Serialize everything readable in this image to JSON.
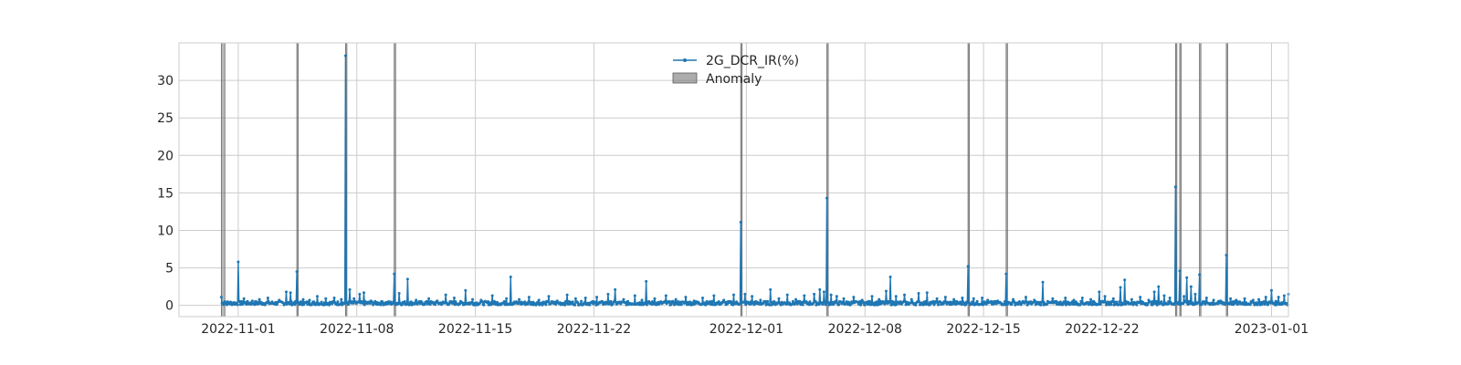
{
  "chart_data": {
    "type": "line",
    "title": "",
    "xlabel": "",
    "ylabel": "",
    "x_range": [
      "2022-10-28T12:00",
      "2023-01-02T00:00"
    ],
    "ylim": [
      -1.5,
      35
    ],
    "grid": true,
    "legend_position": "upper-center",
    "x_ticks": [
      "2022-11-01",
      "2022-11-08",
      "2022-11-15",
      "2022-11-22",
      "2022-12-01",
      "2022-12-08",
      "2022-12-15",
      "2022-12-22",
      "2023-01-01"
    ],
    "y_ticks": [
      0,
      5,
      10,
      15,
      20,
      25,
      30
    ],
    "series": [
      {
        "name": "2G_DCR_IR(%)",
        "color": "#1f77b4",
        "marker": "dot",
        "range": [
          "2022-10-31T00:00",
          "2022-12-31T00:00"
        ],
        "baseline": 0.3,
        "points": [
          [
            "2022-10-31T00:00",
            1.1
          ],
          [
            "2022-10-31T05:00",
            0.5
          ],
          [
            "2022-11-01T00:00",
            5.8
          ],
          [
            "2022-11-01T08:00",
            0.9
          ],
          [
            "2022-11-01T20:00",
            0.6
          ],
          [
            "2022-11-02T06:00",
            0.8
          ],
          [
            "2022-11-02T18:00",
            1.0
          ],
          [
            "2022-11-03T10:00",
            0.7
          ],
          [
            "2022-11-03T20:00",
            1.8
          ],
          [
            "2022-11-04T02:00",
            1.7
          ],
          [
            "2022-11-04T11:00",
            4.5
          ],
          [
            "2022-11-04T20:00",
            0.8
          ],
          [
            "2022-11-05T05:00",
            0.7
          ],
          [
            "2022-11-05T16:00",
            1.2
          ],
          [
            "2022-11-06T04:00",
            0.9
          ],
          [
            "2022-11-06T16:00",
            1.0
          ],
          [
            "2022-11-07T02:00",
            0.8
          ],
          [
            "2022-11-07T08:00",
            33.3
          ],
          [
            "2022-11-07T14:00",
            2.1
          ],
          [
            "2022-11-07T20:00",
            0.9
          ],
          [
            "2022-11-08T04:00",
            1.5
          ],
          [
            "2022-11-08T10:00",
            1.7
          ],
          [
            "2022-11-08T20:00",
            0.6
          ],
          [
            "2022-11-09T12:00",
            0.5
          ],
          [
            "2022-11-10T05:00",
            4.2
          ],
          [
            "2022-11-10T12:00",
            1.6
          ],
          [
            "2022-11-11T00:00",
            3.5
          ],
          [
            "2022-11-11T12:00",
            0.7
          ],
          [
            "2022-11-12T06:00",
            0.9
          ],
          [
            "2022-11-12T18:00",
            0.6
          ],
          [
            "2022-11-13T06:00",
            1.4
          ],
          [
            "2022-11-13T18:00",
            1.0
          ],
          [
            "2022-11-14T10:00",
            2.0
          ],
          [
            "2022-11-14T20:00",
            0.8
          ],
          [
            "2022-11-15T08:00",
            0.7
          ],
          [
            "2022-11-16T00:00",
            1.3
          ],
          [
            "2022-11-16T20:00",
            0.9
          ],
          [
            "2022-11-17T02:00",
            3.8
          ],
          [
            "2022-11-17T14:00",
            0.8
          ],
          [
            "2022-11-18T04:00",
            1.1
          ],
          [
            "2022-11-18T18:00",
            0.7
          ],
          [
            "2022-11-19T08:00",
            1.2
          ],
          [
            "2022-11-19T20:00",
            0.6
          ],
          [
            "2022-11-20T10:00",
            1.4
          ],
          [
            "2022-11-20T22:00",
            0.9
          ],
          [
            "2022-11-21T12:00",
            1.0
          ],
          [
            "2022-11-22T04:00",
            1.1
          ],
          [
            "2022-11-22T20:00",
            1.5
          ],
          [
            "2022-11-23T06:00",
            2.1
          ],
          [
            "2022-11-23T18:00",
            0.8
          ],
          [
            "2022-11-24T10:00",
            1.3
          ],
          [
            "2022-11-24T20:00",
            0.7
          ],
          [
            "2022-11-25T02:00",
            3.2
          ],
          [
            "2022-11-25T14:00",
            0.9
          ],
          [
            "2022-11-26T06:00",
            1.3
          ],
          [
            "2022-11-26T20:00",
            0.8
          ],
          [
            "2022-11-27T10:00",
            1.1
          ],
          [
            "2022-11-27T22:00",
            0.6
          ],
          [
            "2022-11-28T10:00",
            1.0
          ],
          [
            "2022-11-29T02:00",
            1.3
          ],
          [
            "2022-11-29T16:00",
            0.7
          ],
          [
            "2022-11-30T06:00",
            1.4
          ],
          [
            "2022-11-30T16:00",
            11.1
          ],
          [
            "2022-11-30T22:00",
            1.5
          ],
          [
            "2022-12-01T08:00",
            1.2
          ],
          [
            "2022-12-01T20:00",
            0.7
          ],
          [
            "2022-12-02T10:00",
            2.1
          ],
          [
            "2022-12-02T22:00",
            0.9
          ],
          [
            "2022-12-03T10:00",
            1.4
          ],
          [
            "2022-12-03T22:00",
            0.8
          ],
          [
            "2022-12-04T10:00",
            1.3
          ],
          [
            "2022-12-05T00:00",
            1.5
          ],
          [
            "2022-12-05T08:00",
            2.1
          ],
          [
            "2022-12-05T14:00",
            1.8
          ],
          [
            "2022-12-05T18:00",
            14.3
          ],
          [
            "2022-12-06T00:00",
            1.4
          ],
          [
            "2022-12-06T08:00",
            1.2
          ],
          [
            "2022-12-06T18:00",
            0.9
          ],
          [
            "2022-12-07T08:00",
            1.1
          ],
          [
            "2022-12-07T20:00",
            0.7
          ],
          [
            "2022-12-08T10:00",
            1.2
          ],
          [
            "2022-12-08T20:00",
            0.8
          ],
          [
            "2022-12-09T06:00",
            1.9
          ],
          [
            "2022-12-09T12:00",
            3.8
          ],
          [
            "2022-12-09T20:00",
            1.2
          ],
          [
            "2022-12-10T08:00",
            1.4
          ],
          [
            "2022-12-10T18:00",
            0.8
          ],
          [
            "2022-12-11T04:00",
            1.6
          ],
          [
            "2022-12-11T16:00",
            1.7
          ],
          [
            "2022-12-12T06:00",
            0.9
          ],
          [
            "2022-12-12T18:00",
            1.1
          ],
          [
            "2022-12-13T06:00",
            0.8
          ],
          [
            "2022-12-13T18:00",
            1.0
          ],
          [
            "2022-12-14T02:00",
            5.2
          ],
          [
            "2022-12-14T10:00",
            0.9
          ],
          [
            "2022-12-14T22:00",
            1.0
          ],
          [
            "2022-12-15T06:00",
            0.7
          ],
          [
            "2022-12-15T20:00",
            0.6
          ],
          [
            "2022-12-16T08:00",
            4.2
          ],
          [
            "2022-12-16T18:00",
            0.8
          ],
          [
            "2022-12-17T12:00",
            1.1
          ],
          [
            "2022-12-18T00:00",
            0.7
          ],
          [
            "2022-12-18T12:00",
            3.1
          ],
          [
            "2022-12-19T02:00",
            0.9
          ],
          [
            "2022-12-19T20:00",
            1.0
          ],
          [
            "2022-12-20T08:00",
            0.7
          ],
          [
            "2022-12-20T20:00",
            1.0
          ],
          [
            "2022-12-21T08:00",
            0.8
          ],
          [
            "2022-12-21T20:00",
            1.8
          ],
          [
            "2022-12-22T04:00",
            1.2
          ],
          [
            "2022-12-22T16:00",
            0.9
          ],
          [
            "2022-12-23T02:00",
            2.4
          ],
          [
            "2022-12-23T08:00",
            3.4
          ],
          [
            "2022-12-23T18:00",
            0.8
          ],
          [
            "2022-12-24T06:00",
            1.1
          ],
          [
            "2022-12-24T18:00",
            0.7
          ],
          [
            "2022-12-25T02:00",
            1.8
          ],
          [
            "2022-12-25T08:00",
            2.5
          ],
          [
            "2022-12-25T16:00",
            1.3
          ],
          [
            "2022-12-26T00:00",
            1.0
          ],
          [
            "2022-12-26T08:00",
            15.8
          ],
          [
            "2022-12-26T14:00",
            4.6
          ],
          [
            "2022-12-26T20:00",
            1.2
          ],
          [
            "2022-12-27T00:00",
            3.7
          ],
          [
            "2022-12-27T06:00",
            2.5
          ],
          [
            "2022-12-27T12:00",
            1.5
          ],
          [
            "2022-12-27T18:00",
            4.1
          ],
          [
            "2022-12-28T04:00",
            1.0
          ],
          [
            "2022-12-28T14:00",
            0.7
          ],
          [
            "2022-12-29T00:00",
            0.6
          ],
          [
            "2022-12-29T08:00",
            6.7
          ],
          [
            "2022-12-29T14:00",
            0.9
          ],
          [
            "2022-12-29T22:00",
            0.7
          ],
          [
            "2022-12-30T10:00",
            0.9
          ],
          [
            "2022-12-30T22:00",
            0.7
          ],
          [
            "2022-12-31T06:00",
            0.8
          ],
          [
            "2022-12-31T16:00",
            1.1
          ],
          [
            "2023-01-01T00:00",
            2.0
          ],
          [
            "2023-01-01T10:00",
            1.1
          ],
          [
            "2023-01-01T18:00",
            1.3
          ],
          [
            "2023-01-02T00:00",
            1.5
          ]
        ]
      }
    ],
    "anomaly": {
      "name": "Anomaly",
      "color": "#808080",
      "spans": [
        [
          "2022-10-31T00:00",
          "2022-10-31T05:00"
        ],
        [
          "2022-11-04T11:00",
          "2022-11-04T12:00"
        ],
        [
          "2022-11-07T08:00",
          "2022-11-07T09:30"
        ],
        [
          "2022-11-10T05:00",
          "2022-11-10T06:00"
        ],
        [
          "2022-11-30T16:00",
          "2022-11-30T17:00"
        ],
        [
          "2022-12-05T18:00",
          "2022-12-05T19:00"
        ],
        [
          "2022-12-14T02:00",
          "2022-12-14T02:45"
        ],
        [
          "2022-12-16T08:00",
          "2022-12-16T09:00"
        ],
        [
          "2022-12-26T08:00",
          "2022-12-26T09:30"
        ],
        [
          "2022-12-26T14:00",
          "2022-12-26T15:00"
        ],
        [
          "2022-12-27T18:00",
          "2022-12-27T18:45"
        ],
        [
          "2022-12-29T08:00",
          "2022-12-29T09:30"
        ]
      ]
    }
  }
}
